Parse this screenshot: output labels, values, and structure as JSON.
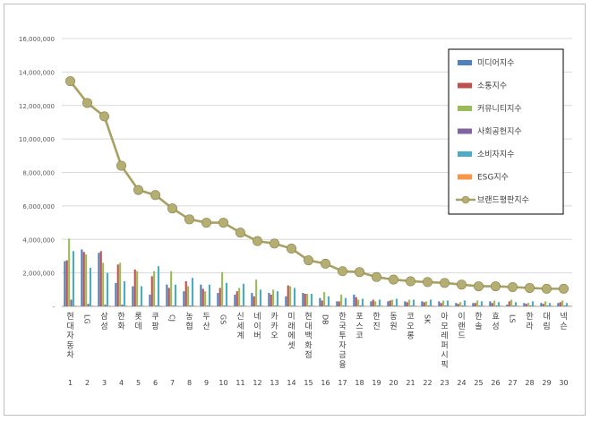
{
  "chart_data": {
    "type": "bar",
    "title": "",
    "xlabel": "",
    "ylabel": "",
    "ylim": [
      0,
      16000000
    ],
    "yticks": [
      "-",
      "2,000,000",
      "4,000,000",
      "6,000,000",
      "8,000,000",
      "10,000,000",
      "12,000,000",
      "14,000,000",
      "16,000,000"
    ],
    "grid": "horizontal",
    "legend_position": "right",
    "categories": [
      "현대자동차",
      "LG",
      "삼성",
      "한화",
      "롯데",
      "쿠팡",
      "CJ",
      "농협",
      "두산",
      "GS",
      "신세계",
      "네이버",
      "카카오",
      "미래에셋",
      "현대백화점",
      "DB",
      "한국투자금융",
      "포스코",
      "한진",
      "동원",
      "코오롱",
      "SK",
      "아모레퍼시픽",
      "이랜드",
      "한솔",
      "효성",
      "LS",
      "한라",
      "대림",
      "넥슨"
    ],
    "ranks": [
      "1",
      "2",
      "3",
      "4",
      "5",
      "6",
      "7",
      "8",
      "9",
      "10",
      "11",
      "12",
      "13",
      "14",
      "15",
      "16",
      "17",
      "18",
      "19",
      "20",
      "21",
      "22",
      "23",
      "24",
      "25",
      "26",
      "27",
      "28",
      "29",
      "30"
    ],
    "series": [
      {
        "name": "미디어지수",
        "color": "#4f81bd",
        "values": [
          2700000,
          3400000,
          3200000,
          1400000,
          1200000,
          700000,
          1300000,
          900000,
          1300000,
          800000,
          700000,
          800000,
          800000,
          600000,
          800000,
          500000,
          300000,
          700000,
          300000,
          300000,
          300000,
          300000,
          300000,
          200000,
          200000,
          300000,
          100000,
          200000,
          200000,
          200000
        ]
      },
      {
        "name": "소통지수",
        "color": "#c0504d",
        "values": [
          2750000,
          3250000,
          3300000,
          2500000,
          2200000,
          1800000,
          1100000,
          1500000,
          1050000,
          1100000,
          900000,
          600000,
          700000,
          1250000,
          750000,
          350000,
          300000,
          550000,
          400000,
          350000,
          250000,
          250000,
          200000,
          150000,
          200000,
          200000,
          300000,
          150000,
          150000,
          250000
        ]
      },
      {
        "name": "커뮤니티지수",
        "color": "#9bbb59",
        "values": [
          4050000,
          3100000,
          2600000,
          2600000,
          2100000,
          2100000,
          2100000,
          1200000,
          900000,
          2050000,
          1100000,
          1600000,
          1000000,
          1200000,
          750000,
          850000,
          700000,
          400000,
          300000,
          400000,
          400000,
          300000,
          350000,
          250000,
          350000,
          350000,
          400000,
          200000,
          300000,
          350000
        ]
      },
      {
        "name": "사회공헌지수",
        "color": "#8064a2",
        "values": [
          400000,
          150000,
          100000,
          100000,
          50000,
          50000,
          50000,
          50000,
          50000,
          50000,
          50000,
          50000,
          50000,
          50000,
          50000,
          50000,
          50000,
          50000,
          50000,
          50000,
          50000,
          50000,
          50000,
          50000,
          50000,
          50000,
          50000,
          50000,
          50000,
          50000
        ]
      },
      {
        "name": "소비자지수",
        "color": "#4bacc6",
        "values": [
          3300000,
          2300000,
          2000000,
          1500000,
          1200000,
          2400000,
          1300000,
          1700000,
          1300000,
          1400000,
          1350000,
          1000000,
          900000,
          1100000,
          750000,
          600000,
          500000,
          450000,
          400000,
          450000,
          400000,
          400000,
          350000,
          350000,
          300000,
          250000,
          250000,
          300000,
          200000,
          200000
        ]
      },
      {
        "name": "ESG지수",
        "color": "#f79646",
        "values": [
          50000,
          50000,
          50000,
          50000,
          50000,
          50000,
          50000,
          50000,
          50000,
          50000,
          50000,
          50000,
          50000,
          50000,
          50000,
          50000,
          50000,
          50000,
          50000,
          50000,
          50000,
          50000,
          50000,
          50000,
          50000,
          50000,
          50000,
          50000,
          50000,
          50000
        ]
      }
    ],
    "line_series": {
      "name": "브랜드평판지수",
      "color": "#b0a96a",
      "values": [
        13450000,
        12150000,
        11350000,
        8400000,
        6950000,
        6650000,
        5850000,
        5200000,
        5000000,
        5000000,
        4400000,
        3900000,
        3750000,
        3450000,
        2750000,
        2550000,
        2100000,
        2050000,
        1750000,
        1600000,
        1500000,
        1450000,
        1400000,
        1300000,
        1200000,
        1200000,
        1150000,
        1100000,
        1050000,
        1050000
      ]
    }
  }
}
